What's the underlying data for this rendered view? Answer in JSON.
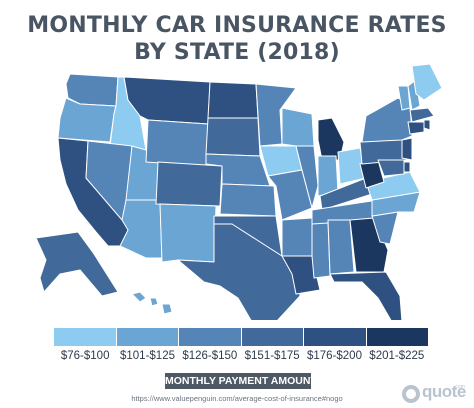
{
  "title": {
    "line1": "MONTHLY CAR INSURANCE RATES",
    "line2": "BY STATE (2018)"
  },
  "legend": {
    "bins": [
      {
        "label": "$76-$100",
        "color": "#8ecbf0"
      },
      {
        "label": "$101-$125",
        "color": "#6aa5d3"
      },
      {
        "label": "$126-$150",
        "color": "#5585b7"
      },
      {
        "label": "$151-$175",
        "color": "#41699a"
      },
      {
        "label": "$176-$200",
        "color": "#2f5182"
      },
      {
        "label": "$201-$225",
        "color": "#1b3760"
      }
    ],
    "title": "MONTHLY PAYMENT AMOUNT"
  },
  "source": "https://www.valuepenguin.com/average-cost-of-insurance#nogo",
  "logo": {
    "text": "quote",
    "sub": ".com"
  },
  "states": [
    {
      "id": "WA",
      "bin": 2
    },
    {
      "id": "OR",
      "bin": 1
    },
    {
      "id": "CA",
      "bin": 4
    },
    {
      "id": "ID",
      "bin": 0
    },
    {
      "id": "NV",
      "bin": 2
    },
    {
      "id": "UT",
      "bin": 1
    },
    {
      "id": "AZ",
      "bin": 1
    },
    {
      "id": "MT",
      "bin": 4
    },
    {
      "id": "WY",
      "bin": 2
    },
    {
      "id": "CO",
      "bin": 3
    },
    {
      "id": "NM",
      "bin": 1
    },
    {
      "id": "ND",
      "bin": 4
    },
    {
      "id": "SD",
      "bin": 3
    },
    {
      "id": "NE",
      "bin": 2
    },
    {
      "id": "KS",
      "bin": 2
    },
    {
      "id": "OK",
      "bin": 3
    },
    {
      "id": "TX",
      "bin": 3
    },
    {
      "id": "MN",
      "bin": 2
    },
    {
      "id": "IA",
      "bin": 0
    },
    {
      "id": "MO",
      "bin": 2
    },
    {
      "id": "AR",
      "bin": 2
    },
    {
      "id": "LA",
      "bin": 4
    },
    {
      "id": "WI",
      "bin": 1
    },
    {
      "id": "IL",
      "bin": 2
    },
    {
      "id": "MS",
      "bin": 2
    },
    {
      "id": "MI",
      "bin": 5
    },
    {
      "id": "IN",
      "bin": 1
    },
    {
      "id": "OH",
      "bin": 0
    },
    {
      "id": "KY",
      "bin": 3
    },
    {
      "id": "TN",
      "bin": 2
    },
    {
      "id": "AL",
      "bin": 2
    },
    {
      "id": "GA",
      "bin": 5
    },
    {
      "id": "FL",
      "bin": 4
    },
    {
      "id": "SC",
      "bin": 2
    },
    {
      "id": "NC",
      "bin": 1
    },
    {
      "id": "VA",
      "bin": 0
    },
    {
      "id": "WV",
      "bin": 5
    },
    {
      "id": "PA",
      "bin": 3
    },
    {
      "id": "NY",
      "bin": 2
    },
    {
      "id": "VT",
      "bin": 1
    },
    {
      "id": "NH",
      "bin": 1
    },
    {
      "id": "ME",
      "bin": 0
    },
    {
      "id": "MA",
      "bin": 3
    },
    {
      "id": "RI",
      "bin": 4
    },
    {
      "id": "CT",
      "bin": 4
    },
    {
      "id": "NJ",
      "bin": 4
    },
    {
      "id": "DE",
      "bin": 4
    },
    {
      "id": "MD",
      "bin": 3
    },
    {
      "id": "AK",
      "bin": 3
    },
    {
      "id": "HI",
      "bin": 1
    }
  ]
}
